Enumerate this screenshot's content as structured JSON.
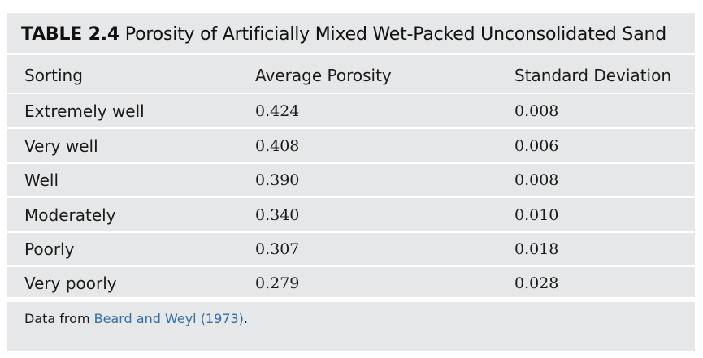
{
  "table": {
    "label": "TABLE 2.4",
    "title": "Porosity of Artificially Mixed Wet-Packed Unconsolidated Sand",
    "columns": [
      "Sorting",
      "Average Porosity",
      "Standard Deviation"
    ],
    "rows": [
      {
        "sorting": "Extremely well",
        "average_porosity": "0.424",
        "standard_deviation": "0.008"
      },
      {
        "sorting": "Very well",
        "average_porosity": "0.408",
        "standard_deviation": "0.006"
      },
      {
        "sorting": "Well",
        "average_porosity": "0.390",
        "standard_deviation": "0.008"
      },
      {
        "sorting": "Moderately",
        "average_porosity": "0.340",
        "standard_deviation": "0.010"
      },
      {
        "sorting": "Poorly",
        "average_porosity": "0.307",
        "standard_deviation": "0.018"
      },
      {
        "sorting": "Very poorly",
        "average_porosity": "0.279",
        "standard_deviation": "0.028"
      }
    ],
    "footnote": {
      "prefix": "Data from ",
      "link_text": "Beard and Weyl (1973)",
      "suffix": "."
    }
  },
  "colors": {
    "table_background": "#e6e7e8",
    "link": "#2f6fa6"
  }
}
